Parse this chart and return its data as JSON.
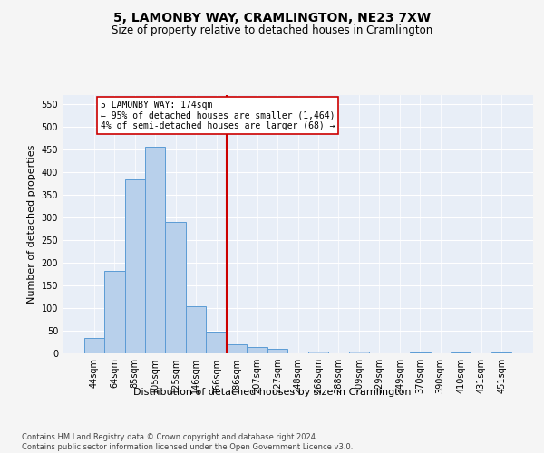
{
  "title": "5, LAMONBY WAY, CRAMLINGTON, NE23 7XW",
  "subtitle": "Size of property relative to detached houses in Cramlington",
  "xlabel": "Distribution of detached houses by size in Cramlington",
  "ylabel": "Number of detached properties",
  "footer": "Contains HM Land Registry data © Crown copyright and database right 2024.\nContains public sector information licensed under the Open Government Licence v3.0.",
  "bar_labels": [
    "44sqm",
    "64sqm",
    "85sqm",
    "105sqm",
    "125sqm",
    "146sqm",
    "166sqm",
    "186sqm",
    "207sqm",
    "227sqm",
    "248sqm",
    "268sqm",
    "288sqm",
    "309sqm",
    "329sqm",
    "349sqm",
    "370sqm",
    "390sqm",
    "410sqm",
    "431sqm",
    "451sqm"
  ],
  "bar_values": [
    35,
    183,
    385,
    457,
    290,
    104,
    48,
    21,
    15,
    10,
    0,
    5,
    0,
    5,
    0,
    0,
    3,
    0,
    3,
    0,
    3
  ],
  "bar_color": "#b8d0eb",
  "bar_edge_color": "#5b9bd5",
  "vline_x_idx": 6,
  "vline_color": "#cc0000",
  "annotation_line1": "5 LAMONBY WAY: 174sqm",
  "annotation_line2": "← 95% of detached houses are smaller (1,464)",
  "annotation_line3": "4% of semi-detached houses are larger (68) →",
  "annotation_box_facecolor": "#ffffff",
  "annotation_box_edgecolor": "#cc0000",
  "ylim": [
    0,
    570
  ],
  "yticks": [
    0,
    50,
    100,
    150,
    200,
    250,
    300,
    350,
    400,
    450,
    500,
    550
  ],
  "plot_bg_color": "#e8eef7",
  "fig_bg_color": "#f5f5f5",
  "grid_color": "#ffffff",
  "title_fontsize": 10,
  "subtitle_fontsize": 8.5,
  "xlabel_fontsize": 8,
  "ylabel_fontsize": 8,
  "tick_fontsize": 7,
  "annotation_fontsize": 7,
  "footer_fontsize": 6
}
